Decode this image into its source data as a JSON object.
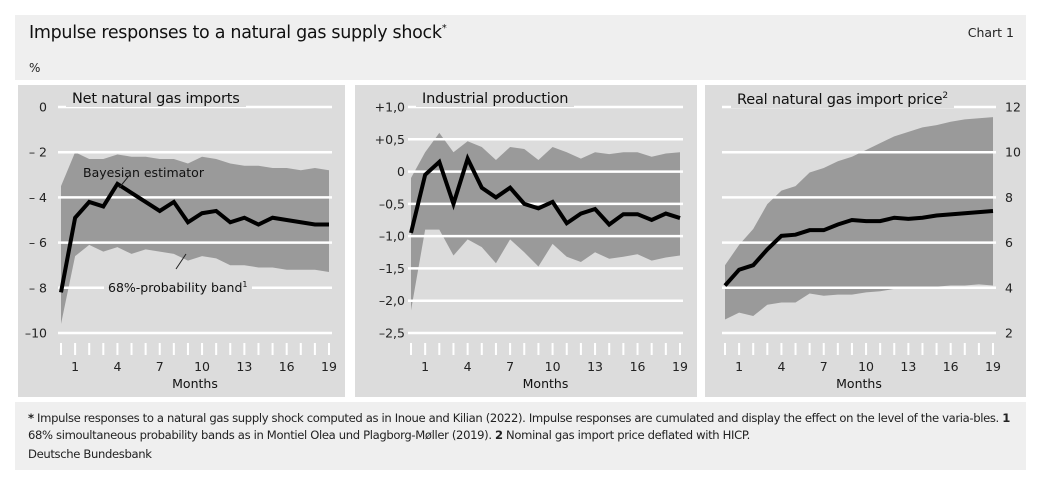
{
  "header": {
    "title": "Impulse responses to a natural gas supply shock",
    "title_sup": "*",
    "chart_number": "Chart 1",
    "unit": "%"
  },
  "footer": {
    "fn_star": "*",
    "fn_star_text": " Impulse responses to a natural gas supply shock computed as in Inoue and Kilian (2022). Impulse responses are cumulated and display the effect on the level of the varia-bles. ",
    "fn1_mark": "1",
    "fn1_text": " 68% simoultaneous probability bands as in Montiel Olea und Plagborg-Møller (2019). ",
    "fn2_mark": "2",
    "fn2_text": " Nominal gas import price deflated with HICP.",
    "source": "Deutsche Bundesbank"
  },
  "colors": {
    "panel_bg": "#dcdcdc",
    "band": "#9a9a9a",
    "line": "#000000",
    "grid": "#ffffff"
  },
  "annotations": {
    "estimator": "Bayesian estimator",
    "band": "68%-probability band",
    "band_sup": "1"
  },
  "chart_data": [
    {
      "type": "area+line",
      "title": "Net natural gas imports",
      "title_sup": "",
      "xlabel": "Months",
      "ylabel": "%",
      "axis_side": "left",
      "ylim": [
        -10,
        0
      ],
      "yticks": [
        0,
        -2,
        -4,
        -6,
        -8,
        -10
      ],
      "ytick_labels": [
        "0",
        "– 2",
        "– 4",
        "– 6",
        "– 8",
        "–10"
      ],
      "xticks": [
        1,
        4,
        7,
        10,
        13,
        16,
        19
      ],
      "x": [
        0,
        1,
        2,
        3,
        4,
        5,
        6,
        7,
        8,
        9,
        10,
        11,
        12,
        13,
        14,
        15,
        16,
        17,
        18,
        19
      ],
      "grid": true,
      "series": [
        {
          "name": "Bayesian estimator",
          "values": [
            -8.2,
            -4.9,
            -4.2,
            -4.4,
            -3.4,
            -3.8,
            -4.2,
            -4.6,
            -4.2,
            -5.1,
            -4.7,
            -4.6,
            -5.1,
            -4.9,
            -5.2,
            -4.9,
            -5.0,
            -5.1,
            -5.2,
            -5.2
          ]
        },
        {
          "name": "68%-probability band",
          "upper": [
            -3.5,
            -2.0,
            -2.3,
            -2.3,
            -2.1,
            -2.2,
            -2.2,
            -2.3,
            -2.3,
            -2.5,
            -2.2,
            -2.3,
            -2.5,
            -2.6,
            -2.6,
            -2.7,
            -2.7,
            -2.8,
            -2.7,
            -2.8
          ],
          "lower": [
            -9.6,
            -6.6,
            -6.1,
            -6.4,
            -6.2,
            -6.5,
            -6.3,
            -6.4,
            -6.5,
            -6.8,
            -6.6,
            -6.7,
            -7.0,
            -7.0,
            -7.1,
            -7.1,
            -7.2,
            -7.2,
            -7.2,
            -7.3
          ]
        }
      ]
    },
    {
      "type": "area+line",
      "title": "Industrial production",
      "title_sup": "",
      "xlabel": "Months",
      "axis_side": "left",
      "ylim": [
        -2.5,
        1.0
      ],
      "yticks": [
        1.0,
        0.5,
        0,
        -0.5,
        -1.0,
        -1.5,
        -2.0,
        -2.5
      ],
      "ytick_labels": [
        "+1,0",
        "+0,5",
        "0",
        "–0,5",
        "–1,0",
        "–1,5",
        "–2,0",
        "–2,5"
      ],
      "xticks": [
        1,
        4,
        7,
        10,
        13,
        16,
        19
      ],
      "x": [
        0,
        1,
        2,
        3,
        4,
        5,
        6,
        7,
        8,
        9,
        10,
        11,
        12,
        13,
        14,
        15,
        16,
        17,
        18,
        19
      ],
      "grid": true,
      "series": [
        {
          "values": [
            -0.95,
            -0.05,
            0.15,
            -0.5,
            0.2,
            -0.25,
            -0.4,
            -0.25,
            -0.5,
            -0.57,
            -0.47,
            -0.8,
            -0.65,
            -0.58,
            -0.82,
            -0.66,
            -0.66,
            -0.75,
            -0.65,
            -0.72
          ]
        },
        {
          "upper": [
            -0.1,
            0.3,
            0.6,
            0.3,
            0.47,
            0.38,
            0.18,
            0.38,
            0.35,
            0.18,
            0.38,
            0.3,
            0.2,
            0.3,
            0.27,
            0.3,
            0.3,
            0.23,
            0.28,
            0.3
          ],
          "lower": [
            -2.15,
            -0.9,
            -0.9,
            -1.3,
            -1.05,
            -1.17,
            -1.42,
            -1.05,
            -1.25,
            -1.47,
            -1.12,
            -1.32,
            -1.4,
            -1.25,
            -1.35,
            -1.32,
            -1.28,
            -1.38,
            -1.33,
            -1.3
          ]
        }
      ]
    },
    {
      "type": "area+line",
      "title": "Real natural gas import price",
      "title_sup": "2",
      "xlabel": "Months",
      "axis_side": "right",
      "ylim": [
        2,
        12
      ],
      "yticks": [
        12,
        10,
        8,
        6,
        4,
        2
      ],
      "ytick_labels": [
        "12",
        "10",
        "8",
        "6",
        "4",
        "2"
      ],
      "xticks": [
        1,
        4,
        7,
        10,
        13,
        16,
        19
      ],
      "x": [
        0,
        1,
        2,
        3,
        4,
        5,
        6,
        7,
        8,
        9,
        10,
        11,
        12,
        13,
        14,
        15,
        16,
        17,
        18,
        19
      ],
      "grid": true,
      "series": [
        {
          "values": [
            4.1,
            4.8,
            5.0,
            5.7,
            6.3,
            6.35,
            6.55,
            6.55,
            6.8,
            7.0,
            6.95,
            6.95,
            7.1,
            7.05,
            7.1,
            7.2,
            7.25,
            7.3,
            7.35,
            7.4
          ]
        },
        {
          "upper": [
            5.0,
            5.9,
            6.6,
            7.7,
            8.3,
            8.5,
            9.1,
            9.3,
            9.6,
            9.8,
            10.1,
            10.4,
            10.7,
            10.9,
            11.1,
            11.2,
            11.35,
            11.45,
            11.5,
            11.55
          ],
          "lower": [
            2.6,
            2.9,
            2.75,
            3.25,
            3.35,
            3.35,
            3.75,
            3.65,
            3.7,
            3.7,
            3.8,
            3.85,
            3.95,
            4.0,
            4.05,
            4.05,
            4.1,
            4.1,
            4.15,
            4.1
          ]
        }
      ]
    }
  ]
}
